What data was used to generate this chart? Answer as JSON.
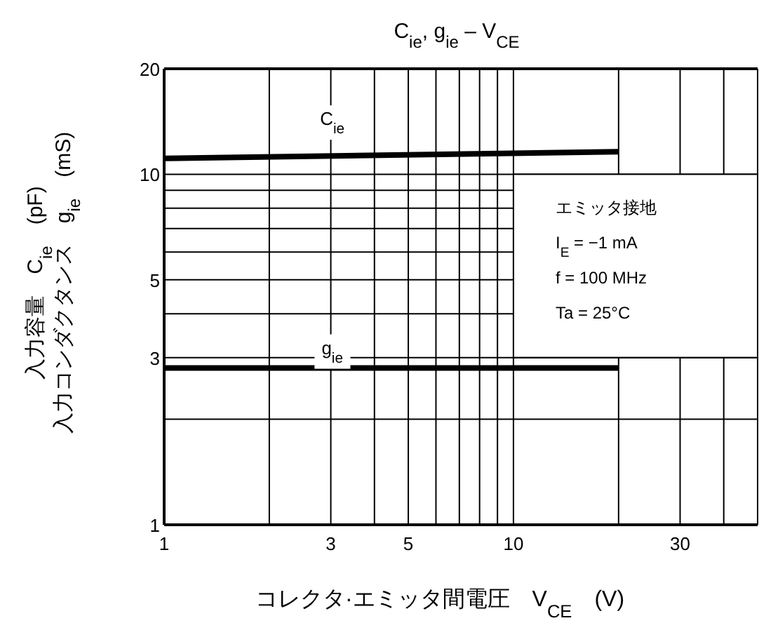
{
  "chart_data": {
    "type": "line",
    "title": "C$_{ie}$, g$_{ie}$ – V$_{CE}$",
    "xlabel": "コレクタ·エミッタ間電圧　V$_{CE}$　(V)",
    "ylabel": "入力容量　C$_{ie}$　(pF)\n入力コンダクタンス　g$_{ie}$　(mS)",
    "log": "xy",
    "xlim": [
      1,
      50
    ],
    "ylim": [
      1,
      20
    ],
    "xticks": [
      1,
      {
        "value": 2,
        "label": null
      },
      3,
      {
        "value": 4,
        "label": null
      },
      5,
      {
        "value": 6,
        "label": null
      },
      {
        "value": 7,
        "label": null
      },
      {
        "value": 8,
        "label": null
      },
      {
        "value": 9,
        "label": null
      },
      10,
      {
        "value": 20,
        "label": null
      },
      30,
      {
        "value": 40,
        "label": null
      }
    ],
    "yticks": [
      1,
      {
        "value": 2,
        "label": null
      },
      3,
      {
        "value": 4,
        "label": null
      },
      5,
      {
        "value": 6,
        "label": null
      },
      {
        "value": 7,
        "label": null
      },
      {
        "value": 8,
        "label": null
      },
      {
        "value": 9,
        "label": null
      },
      10,
      20
    ],
    "grid": true,
    "x": [
      1,
      20
    ],
    "series": [
      {
        "name": "C$_{ie}$",
        "color": "#000000",
        "values": [
          11.1,
          11.6
        ]
      },
      {
        "name": "g$_{ie}$",
        "color": "#000000",
        "values": [
          2.8,
          2.8
        ]
      }
    ],
    "annotations": [
      "エミッタ接地",
      "I$_{E}$ = −1 mA",
      "f = 100 MHz",
      "Ta = 25°C"
    ]
  }
}
